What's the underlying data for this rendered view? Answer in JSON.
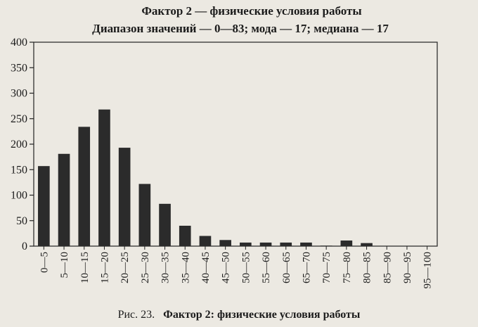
{
  "chart_data": {
    "type": "bar",
    "title": "Фактор 2 — физические условия работы",
    "subtitle": "Диапазон значений — 0—83; мода — 17; медиана — 17",
    "categories": [
      "0—5",
      "5—10",
      "10—15",
      "15—20",
      "20—25",
      "25—30",
      "30—35",
      "35—40",
      "40—45",
      "45—50",
      "50—55",
      "55—60",
      "60—65",
      "65—70",
      "70—75",
      "75—80",
      "80—85",
      "85—90",
      "90—95",
      "95—100"
    ],
    "values": [
      157,
      181,
      234,
      268,
      193,
      122,
      83,
      40,
      20,
      12,
      7,
      7,
      7,
      7,
      1,
      11,
      6,
      0,
      0,
      0
    ],
    "ylim": [
      0,
      400
    ],
    "yticks": [
      0,
      50,
      100,
      150,
      200,
      250,
      300,
      350,
      400
    ],
    "grid": false,
    "bar_color": "#2b2b2b"
  },
  "caption": {
    "prefix": "Рис. 23.",
    "text": "Фактор 2:  физические условия работы"
  }
}
